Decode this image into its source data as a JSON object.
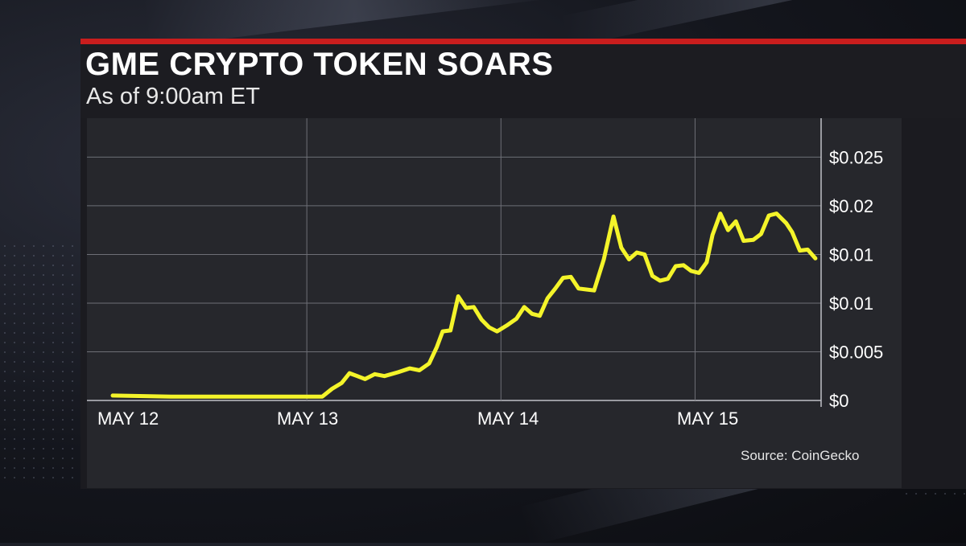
{
  "header": {
    "title": "GME CRYPTO TOKEN SOARS",
    "subtitle": "As of 9:00am ET"
  },
  "source": "Source: CoinGecko",
  "colors": {
    "accent_red": "#c91d1d",
    "line": "#f4f42a",
    "panel": "#1b1b20",
    "plot": "#26272c",
    "grid": "#6e6f76",
    "text": "#ffffff"
  },
  "chart_data": {
    "type": "line",
    "x_tick_labels": [
      "MAY 12",
      "MAY 13",
      "MAY 14",
      "MAY 15"
    ],
    "y_tick_labels": [
      "$0",
      "$0.005",
      "$0.01",
      "$0.01",
      "$0.02",
      "$0.025"
    ],
    "y_tick_values": [
      0,
      0.005,
      0.01,
      0.015,
      0.02,
      0.025
    ],
    "ylim": [
      0,
      0.029
    ],
    "xlim": [
      0,
      3.5
    ],
    "grid": true,
    "series": [
      {
        "values": [
          [
            0.0,
            0.0005
          ],
          [
            0.3,
            0.0004
          ],
          [
            0.6,
            0.0004
          ],
          [
            0.9,
            0.0004
          ],
          [
            1.08,
            0.0004
          ],
          [
            1.13,
            0.0012
          ],
          [
            1.18,
            0.0018
          ],
          [
            1.22,
            0.0028
          ],
          [
            1.26,
            0.0025
          ],
          [
            1.3,
            0.0022
          ],
          [
            1.35,
            0.0027
          ],
          [
            1.4,
            0.0025
          ],
          [
            1.47,
            0.0029
          ],
          [
            1.53,
            0.0033
          ],
          [
            1.58,
            0.0031
          ],
          [
            1.63,
            0.0038
          ],
          [
            1.67,
            0.0055
          ],
          [
            1.7,
            0.0071
          ],
          [
            1.74,
            0.0072
          ],
          [
            1.78,
            0.0107
          ],
          [
            1.82,
            0.0095
          ],
          [
            1.86,
            0.0096
          ],
          [
            1.9,
            0.0083
          ],
          [
            1.94,
            0.0075
          ],
          [
            1.98,
            0.0071
          ],
          [
            2.03,
            0.0077
          ],
          [
            2.08,
            0.0084
          ],
          [
            2.12,
            0.0096
          ],
          [
            2.16,
            0.0089
          ],
          [
            2.2,
            0.0087
          ],
          [
            2.24,
            0.0105
          ],
          [
            2.28,
            0.0115
          ],
          [
            2.32,
            0.0126
          ],
          [
            2.36,
            0.0127
          ],
          [
            2.4,
            0.0115
          ],
          [
            2.44,
            0.0114
          ],
          [
            2.48,
            0.0113
          ],
          [
            2.53,
            0.0145
          ],
          [
            2.58,
            0.0189
          ],
          [
            2.62,
            0.0157
          ],
          [
            2.66,
            0.0145
          ],
          [
            2.7,
            0.0152
          ],
          [
            2.74,
            0.015
          ],
          [
            2.78,
            0.0128
          ],
          [
            2.82,
            0.0123
          ],
          [
            2.86,
            0.0125
          ],
          [
            2.9,
            0.0138
          ],
          [
            2.94,
            0.0139
          ],
          [
            2.98,
            0.0133
          ],
          [
            3.02,
            0.0131
          ],
          [
            3.06,
            0.0142
          ],
          [
            3.09,
            0.017
          ],
          [
            3.13,
            0.0192
          ],
          [
            3.17,
            0.0175
          ],
          [
            3.21,
            0.0184
          ],
          [
            3.25,
            0.0164
          ],
          [
            3.3,
            0.0165
          ],
          [
            3.34,
            0.0171
          ],
          [
            3.38,
            0.019
          ],
          [
            3.42,
            0.0192
          ],
          [
            3.47,
            0.0182
          ],
          [
            3.5,
            0.0173
          ],
          [
            3.54,
            0.0154
          ],
          [
            3.58,
            0.0155
          ],
          [
            3.62,
            0.0146
          ]
        ]
      }
    ]
  }
}
